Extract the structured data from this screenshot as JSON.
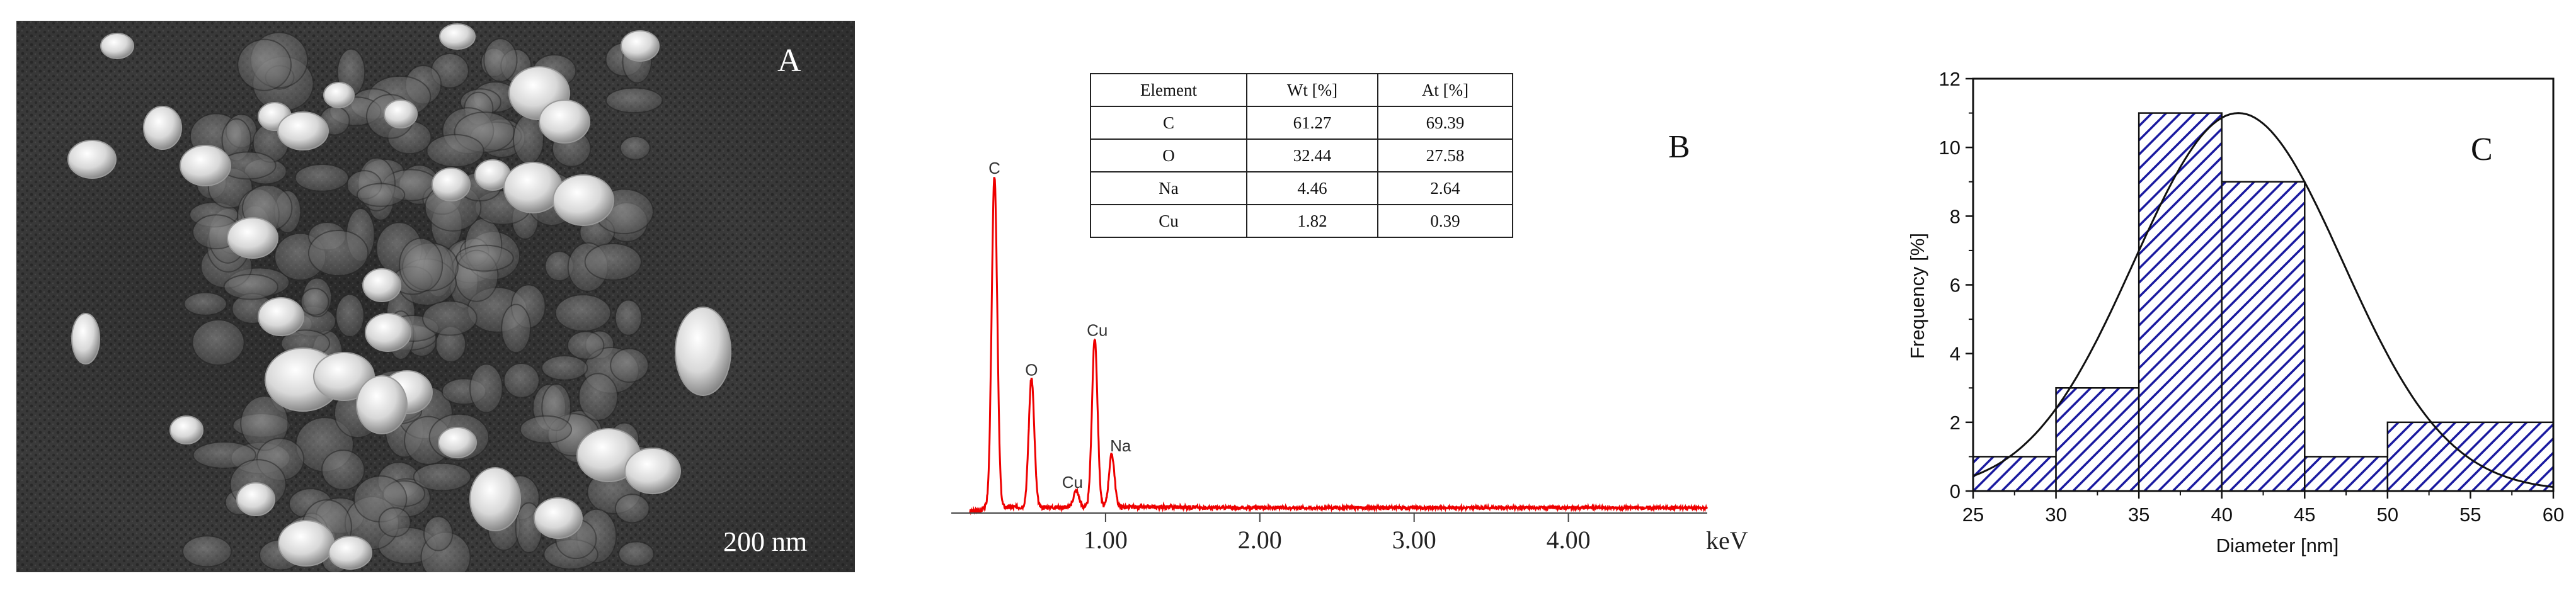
{
  "panel_a": {
    "label": "A",
    "scale_bar": "200 nm"
  },
  "panel_b": {
    "label": "B",
    "table": {
      "headers": [
        "Element",
        "Wt [%]",
        "At [%]"
      ],
      "rows": [
        [
          "C",
          "61.27",
          "69.39"
        ],
        [
          "O",
          "32.44",
          "27.58"
        ],
        [
          "Na",
          "4.46",
          "2.64"
        ],
        [
          "Cu",
          "1.82",
          "0.39"
        ]
      ]
    }
  },
  "chart_data": [
    {
      "type": "line",
      "panel": "B",
      "xlabel": "keV",
      "ylabel": "",
      "xlim": [
        0,
        4.9
      ],
      "x_ticks": [
        "1.00",
        "2.00",
        "3.00",
        "4.00"
      ],
      "x_tick_values": [
        1.0,
        2.0,
        3.0,
        4.0
      ],
      "color": "#ee0000",
      "peaks": [
        {
          "label": "C",
          "x": 0.28,
          "height": 1.0
        },
        {
          "label": "O",
          "x": 0.52,
          "height": 0.39
        },
        {
          "label": "Cu",
          "x": 0.93,
          "height": 0.51
        },
        {
          "label": "Na",
          "x": 1.04,
          "height": 0.16
        },
        {
          "label": "Cu",
          "x": 0.81,
          "height": 0.05
        }
      ],
      "peak_labels": [
        "C",
        "O",
        "Cu",
        "Na",
        "Cu"
      ]
    },
    {
      "type": "bar",
      "panel": "C",
      "label": "C",
      "xlabel": "Diameter [nm]",
      "ylabel": "Frequency [%]",
      "xlim": [
        25,
        60
      ],
      "ylim": [
        0,
        12
      ],
      "x_ticks": [
        "25",
        "30",
        "35",
        "40",
        "45",
        "50",
        "55",
        "60"
      ],
      "y_ticks": [
        "0",
        "2",
        "4",
        "6",
        "8",
        "10",
        "12"
      ],
      "bins": [
        [
          25,
          30
        ],
        [
          30,
          35
        ],
        [
          35,
          40
        ],
        [
          40,
          45
        ],
        [
          45,
          50
        ],
        [
          50,
          60
        ]
      ],
      "values": [
        1,
        3,
        11,
        9,
        1,
        2
      ],
      "bar_color": "#1a1aa0",
      "fit_curve": {
        "type": "normal",
        "mean": 41,
        "sd": 6.3,
        "peak": 11
      }
    }
  ]
}
